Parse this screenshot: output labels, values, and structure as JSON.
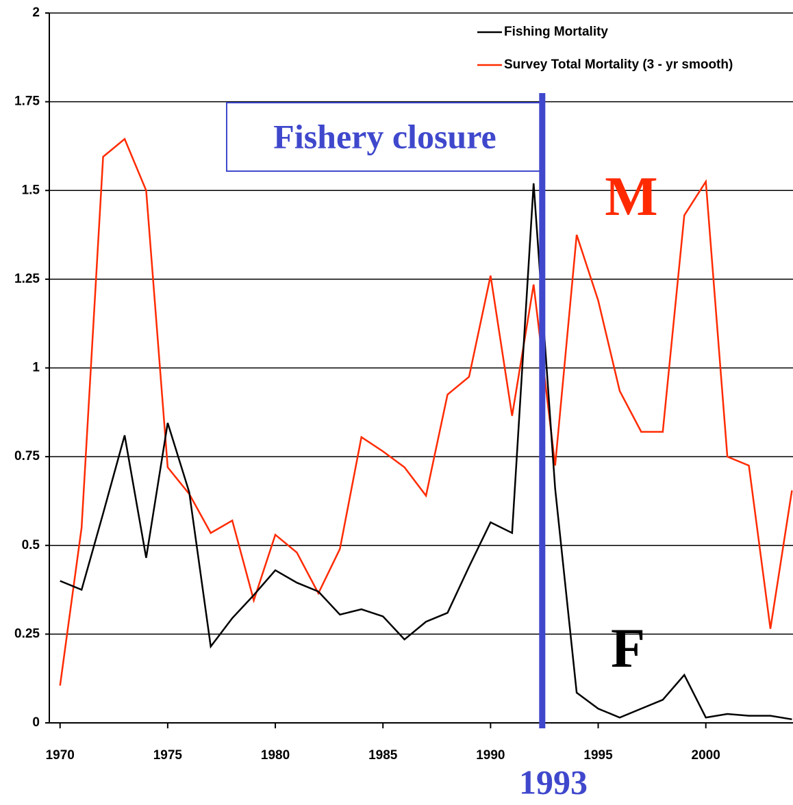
{
  "chart_data": {
    "type": "line",
    "x": [
      1970,
      1971,
      1972,
      1973,
      1974,
      1975,
      1976,
      1977,
      1978,
      1979,
      1980,
      1981,
      1982,
      1983,
      1984,
      1985,
      1986,
      1987,
      1988,
      1989,
      1990,
      1991,
      1992,
      1993,
      1994,
      1995,
      1996,
      1997,
      1998,
      1999,
      2000,
      2001,
      2002,
      2003,
      2004
    ],
    "series": [
      {
        "name": "Fishing Mortality",
        "color": "#000000",
        "values": [
          0.4,
          0.375,
          0.59,
          0.81,
          0.465,
          0.845,
          0.65,
          0.215,
          0.295,
          0.36,
          0.43,
          0.395,
          0.37,
          0.305,
          0.32,
          0.3,
          0.235,
          0.285,
          0.31,
          0.44,
          0.565,
          0.535,
          1.52,
          0.66,
          0.085,
          0.04,
          0.015,
          0.04,
          0.065,
          0.135,
          0.015,
          0.025,
          0.02,
          0.02,
          0.01
        ]
      },
      {
        "name": "Survey Total Mortality (3 - yr smooth)",
        "color": "#ff2a00",
        "values": [
          0.105,
          0.55,
          1.595,
          1.645,
          1.5,
          0.72,
          0.645,
          0.535,
          0.57,
          0.345,
          0.53,
          0.48,
          0.365,
          0.49,
          0.805,
          0.765,
          0.72,
          0.64,
          0.925,
          0.975,
          1.26,
          0.865,
          1.235,
          0.725,
          1.375,
          1.19,
          0.935,
          0.82,
          0.82,
          1.43,
          1.525,
          0.75,
          0.725,
          0.265,
          0.655
        ]
      }
    ],
    "xlim": [
      1969.5,
      2004.05
    ],
    "ylim": [
      0,
      2
    ],
    "xticks": [
      1970,
      1975,
      1980,
      1985,
      1990,
      1995,
      2000
    ],
    "yticks": [
      0,
      0.25,
      0.5,
      0.75,
      1,
      1.25,
      1.5,
      1.75,
      2
    ],
    "grid": true,
    "legend": "upper right",
    "vline": {
      "x": 1992.4,
      "label": "1993",
      "color": "#3f48cc"
    },
    "annotations": {
      "closure": "Fishery closure",
      "m": "M",
      "f": "F"
    }
  }
}
